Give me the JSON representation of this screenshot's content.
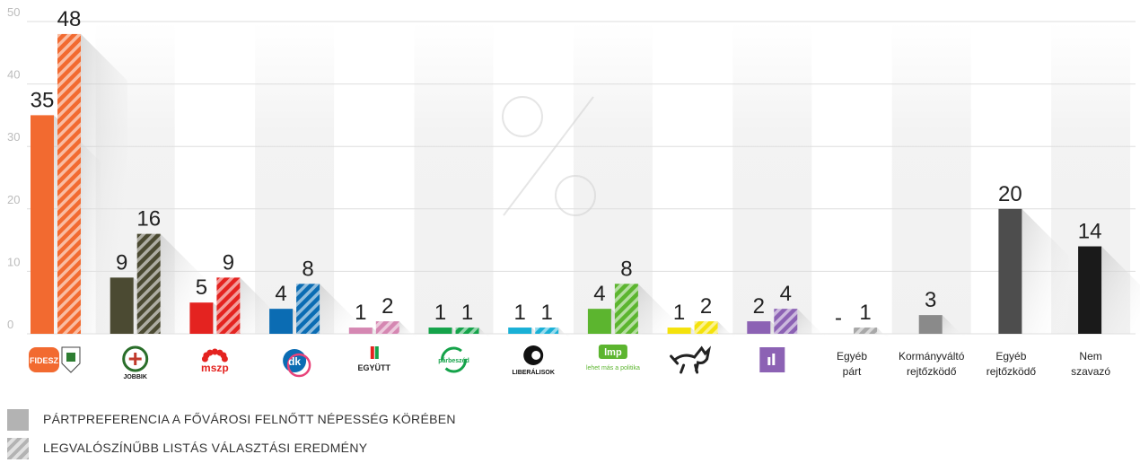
{
  "chart_data": {
    "type": "bar",
    "ylim": [
      0,
      50
    ],
    "yticks": [
      0,
      10,
      20,
      30,
      40,
      50
    ],
    "grid": true,
    "watermark": "%",
    "categories": [
      {
        "key": "fidesz",
        "logo": "fidesz-kdnp-logo",
        "logo_text": "FIDESZ",
        "color": "#f26a30",
        "color_dark": "#d8521e"
      },
      {
        "key": "jobbik",
        "logo": "jobbik-logo",
        "logo_text": "JOBBIK",
        "color": "#4b4a32",
        "color_dark": "#35341f"
      },
      {
        "key": "mszp",
        "logo": "mszp-logo",
        "logo_text": "mszp",
        "color": "#e42320",
        "color_dark": "#b5150f"
      },
      {
        "key": "dk",
        "logo": "dk-logo",
        "logo_text": "dk",
        "color": "#0b6cb3",
        "color_dark": "#08508a"
      },
      {
        "key": "egyutt",
        "logo": "egyutt-logo",
        "logo_text": "EGYÜTT",
        "color": "#d587b2",
        "color_dark": "#b9689a"
      },
      {
        "key": "parbeszed",
        "logo": "parbeszed-logo",
        "logo_text": "párbeszéd",
        "color": "#15a34a",
        "color_dark": "#0e7d37"
      },
      {
        "key": "liberalisok",
        "logo": "liberalisok-logo",
        "logo_text": "LIBERÁLISOK",
        "color": "#19b0d6",
        "color_dark": "#1189a8"
      },
      {
        "key": "lmp",
        "logo": "lmp-logo",
        "logo_text": "lmp",
        "logo_sub": "lehet más a politika",
        "color": "#5cb52f",
        "color_dark": "#3f8f1b"
      },
      {
        "key": "mkkp",
        "logo": "two-tailed-dog-logo",
        "logo_text": "",
        "color": "#f4e20c",
        "color_dark": "#c9b900"
      },
      {
        "key": "momentum",
        "logo": "momentum-logo",
        "logo_text": "",
        "color": "#8c62b4",
        "color_dark": "#6c4694"
      },
      {
        "key": "egyeb-part",
        "logo": "",
        "label_lines": [
          "Egyéb",
          "párt"
        ],
        "color": "#a8a8a8",
        "color_dark": "#8a8a8a"
      },
      {
        "key": "kormanyvalto",
        "logo": "",
        "label_lines": [
          "Kormányváltó",
          "rejtőzködő"
        ],
        "color": "#8a8a8a",
        "color_dark": "#6e6e6e"
      },
      {
        "key": "egyeb-rejtozkodo",
        "logo": "",
        "label_lines": [
          "Egyéb",
          "rejtőzködő"
        ],
        "color": "#4d4d4d",
        "color_dark": "#333333"
      },
      {
        "key": "nem-szavazo",
        "logo": "",
        "label_lines": [
          "Nem",
          "szavazó"
        ],
        "color": "#1a1a1a",
        "color_dark": "#000000"
      }
    ],
    "series": [
      {
        "name": "PÁRTPREFERENCIA A FŐVÁROSI FELNŐTT NÉPESSÉG KÖRÉBEN",
        "style": "solid",
        "values": [
          35,
          9,
          5,
          4,
          1,
          1,
          1,
          4,
          1,
          2,
          null,
          3,
          20,
          14
        ],
        "value_labels": [
          "35",
          "9",
          "5",
          "4",
          "1",
          "1",
          "1",
          "4",
          "1",
          "2",
          "-",
          "",
          "",
          ""
        ]
      },
      {
        "name": "LEGVALÓSZÍNŰBB LISTÁS VÁLASZTÁSI EREDMÉNY",
        "style": "striped",
        "values": [
          48,
          16,
          9,
          8,
          2,
          1,
          1,
          8,
          2,
          4,
          1,
          null,
          null,
          null
        ],
        "value_labels": [
          "48",
          "16",
          "9",
          "8",
          "2",
          "1",
          "1",
          "8",
          "2",
          "4",
          "1",
          "",
          "",
          ""
        ]
      }
    ],
    "single_labels": {
      "kormanyvalto": "3",
      "egyeb-rejtozkodo": "20",
      "nem-szavazo": "14"
    }
  },
  "legend": [
    {
      "label": "PÁRTPREFERENCIA A FŐVÁROSI FELNŐTT NÉPESSÉG KÖRÉBEN",
      "style": "solid",
      "color": "#b3b3b3"
    },
    {
      "label": "LEGVALÓSZÍNŰBB LISTÁS VÁLASZTÁSI EREDMÉNY",
      "style": "striped",
      "color": "#b3b3b3"
    }
  ]
}
